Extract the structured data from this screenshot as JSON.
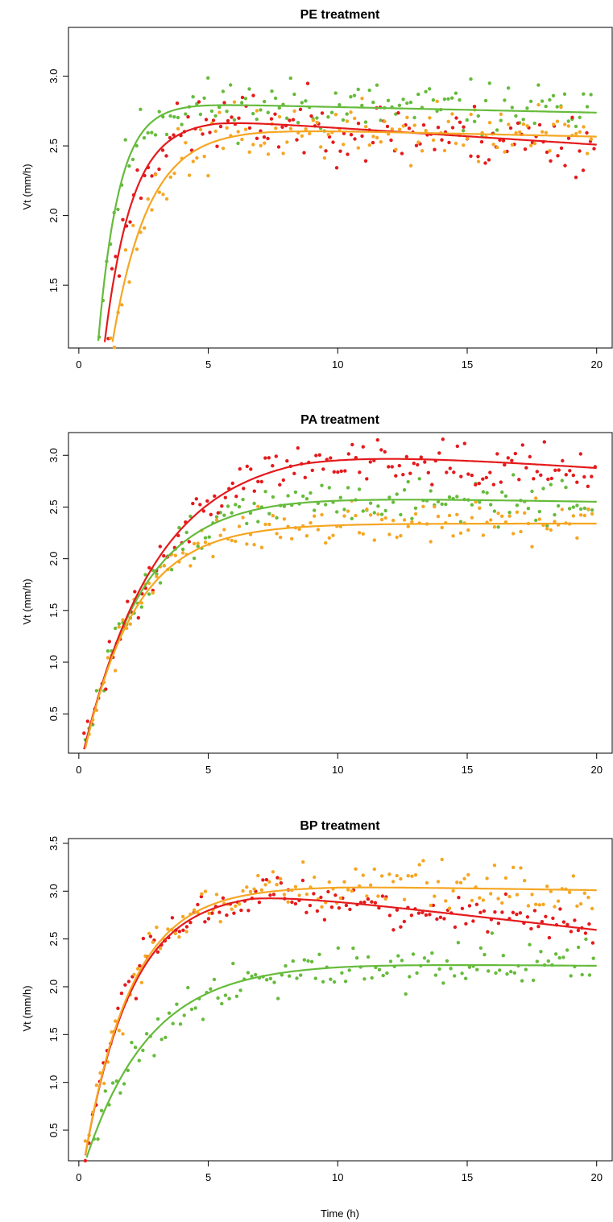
{
  "chart_data": [
    {
      "type": "scatter",
      "title": "PE treatment",
      "xlabel": "",
      "ylabel": "Vt (mm/h)",
      "xlim": [
        -0.4,
        20.6
      ],
      "ylim": [
        1.05,
        3.35
      ],
      "xticks": [
        0,
        5,
        10,
        15,
        20
      ],
      "xtick_labels": [
        "0",
        "5",
        "10",
        "15",
        "20"
      ],
      "yticks": [
        1.5,
        2.0,
        2.5,
        3.0
      ],
      "ytick_labels": [
        "1.5",
        "2.0",
        "2.5",
        "3.0"
      ],
      "series": [
        {
          "color": "#66bb3c",
          "fit": {
            "a": 2.8,
            "k": 1.25,
            "t0": 0.35,
            "m": -0.004,
            "tp": 4.6
          },
          "points": {
            "x0": 0.35,
            "x1": 19.9,
            "step": 0.145,
            "seed": 11,
            "noise": 0.2
          }
        },
        {
          "color": "#e41a1c",
          "fit": {
            "a": 2.685,
            "k": 0.95,
            "t0": 0.45,
            "m": -0.012,
            "tp": 5.3
          },
          "points": {
            "x0": 0.3,
            "x1": 19.95,
            "step": 0.14,
            "seed": 23,
            "noise": 0.22
          }
        },
        {
          "color": "#f5a623",
          "fit": {
            "a": 2.62,
            "k": 0.72,
            "t0": 0.55,
            "m": -0.004,
            "tp": 6.6
          },
          "points": {
            "x0": 0.5,
            "x1": 19.9,
            "step": 0.145,
            "seed": 37,
            "noise": 0.22
          }
        }
      ]
    },
    {
      "type": "scatter",
      "title": "PA treatment",
      "xlabel": "",
      "ylabel": "Vt (mm/h)",
      "xlim": [
        -0.4,
        20.6
      ],
      "ylim": [
        0.12,
        3.22
      ],
      "xticks": [
        0,
        5,
        10,
        15,
        20
      ],
      "xtick_labels": [
        "0",
        "5",
        "10",
        "15",
        "20"
      ],
      "yticks": [
        0.5,
        1.0,
        1.5,
        2.0,
        2.5,
        3.0
      ],
      "ytick_labels": [
        "0.5",
        "1.0",
        "1.5",
        "2.0",
        "2.5",
        "3.0"
      ],
      "series": [
        {
          "color": "#66bb3c",
          "fit": {
            "a": 2.6,
            "k": 0.45,
            "t0": 0.1,
            "m": -0.004,
            "tp": 7.8
          },
          "points": {
            "x0": 0.25,
            "x1": 19.9,
            "step": 0.145,
            "seed": 51,
            "noise": 0.2
          }
        },
        {
          "color": "#e41a1c",
          "fit": {
            "a": 3.07,
            "k": 0.35,
            "t0": 0.05,
            "m": -0.0165,
            "tp": 8.5
          },
          "points": {
            "x0": 0.2,
            "x1": 19.95,
            "step": 0.14,
            "seed": 63,
            "noise": 0.22
          }
        },
        {
          "color": "#f5a623",
          "fit": {
            "a": 2.34,
            "k": 0.5,
            "t0": 0.1,
            "m": 0,
            "tp": 10
          },
          "points": {
            "x0": 0.25,
            "x1": 19.9,
            "step": 0.145,
            "seed": 77,
            "noise": 0.2
          }
        }
      ]
    },
    {
      "type": "scatter",
      "title": "BP treatment",
      "xlabel": "Time (h)",
      "ylabel": "Vt (mm/h)",
      "xlim": [
        -0.4,
        20.6
      ],
      "ylim": [
        0.18,
        3.55
      ],
      "xticks": [
        0,
        5,
        10,
        15,
        20
      ],
      "xtick_labels": [
        "0",
        "5",
        "10",
        "15",
        "20"
      ],
      "yticks": [
        0.5,
        1.0,
        1.5,
        2.0,
        2.5,
        3.0,
        3.5
      ],
      "ytick_labels": [
        "0.5",
        "1.0",
        "1.5",
        "2.0",
        "2.5",
        "3.0",
        "3.5"
      ],
      "series": [
        {
          "color": "#66bb3c",
          "fit": {
            "a": 2.245,
            "k": 0.4,
            "t0": 0.05,
            "m": -0.0025,
            "tp": 10
          },
          "points": {
            "x0": 0.3,
            "x1": 19.9,
            "step": 0.145,
            "seed": 91,
            "noise": 0.24
          }
        },
        {
          "color": "#e41a1c",
          "fit": {
            "a": 3.0,
            "k": 0.55,
            "t0": 0.1,
            "m": -0.0305,
            "tp": 6.7
          },
          "points": {
            "x0": 0.25,
            "x1": 19.95,
            "step": 0.14,
            "seed": 103,
            "noise": 0.22
          }
        },
        {
          "color": "#f5a623",
          "fit": {
            "a": 3.05,
            "k": 0.55,
            "t0": 0.1,
            "m": -0.004,
            "tp": 10
          },
          "points": {
            "x0": 0.25,
            "x1": 19.9,
            "step": 0.145,
            "seed": 117,
            "noise": 0.24
          }
        }
      ]
    }
  ]
}
